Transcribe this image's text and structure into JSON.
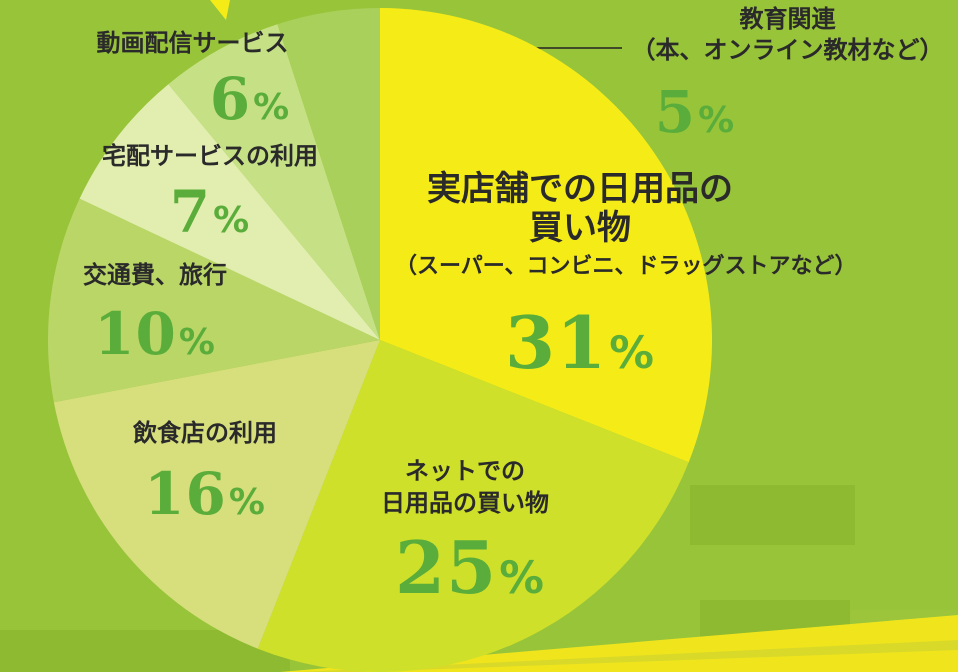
{
  "colors": {
    "background": "#98c43a",
    "percent_text": "#5aad3a",
    "label_text": "#2a2a2a"
  },
  "chart_data": {
    "type": "pie",
    "title": "",
    "slices": [
      {
        "label": "実店舗での日用品の買い物",
        "sublabel": "（スーパー、コンビニ、ドラッグストアなど）",
        "value": 31,
        "display": "31",
        "color": "#f5ec17"
      },
      {
        "label": "ネットでの日用品の買い物",
        "value": 25,
        "display": "25",
        "color": "#cfe02a"
      },
      {
        "label": "飲食店の利用",
        "value": 16,
        "display": "16",
        "color": "#d7df7d"
      },
      {
        "label": "交通費、旅行",
        "value": 10,
        "display": "10",
        "color": "#b9d667"
      },
      {
        "label": "宅配サービスの利用",
        "value": 7,
        "display": "7",
        "color": "#e2eeaf"
      },
      {
        "label": "動画配信サービス",
        "value": 6,
        "display": "6",
        "color": "#c6e185"
      },
      {
        "label": "教育関連",
        "sublabel": "（本、オンライン教材など）",
        "value": 5,
        "display": "5",
        "color": "#a8d05a"
      }
    ],
    "unit": "%"
  }
}
